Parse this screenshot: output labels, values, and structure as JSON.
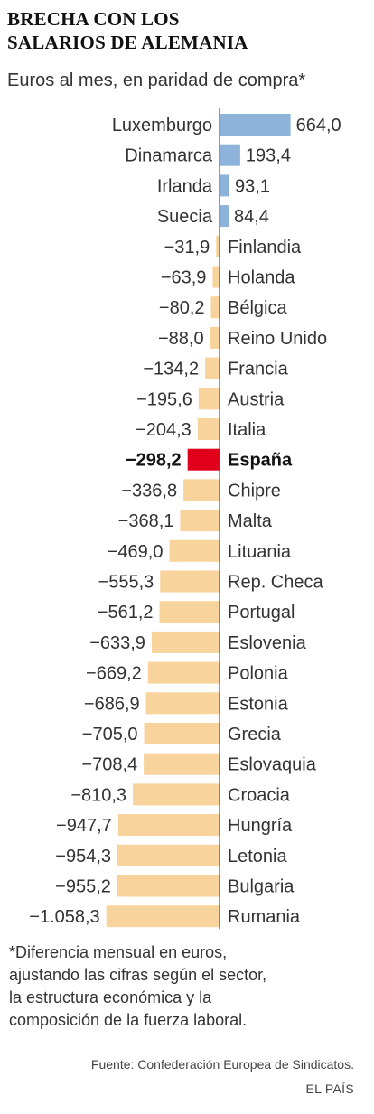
{
  "title_lines": [
    "BRECHA CON LOS",
    "SALARIOS DE ALEMANIA"
  ],
  "subtitle": "Euros al mes, en paridad de compra*",
  "chart_data": {
    "type": "bar",
    "orientation": "horizontal",
    "categories": [
      "Luxemburgo",
      "Dinamarca",
      "Irlanda",
      "Suecia",
      "Finlandia",
      "Holanda",
      "Bélgica",
      "Reino Unido",
      "Francia",
      "Austria",
      "Italia",
      "España",
      "Chipre",
      "Malta",
      "Lituania",
      "Rep. Checa",
      "Portugal",
      "Eslovenia",
      "Polonia",
      "Estonia",
      "Grecia",
      "Eslovaquia",
      "Croacia",
      "Hungría",
      "Letonia",
      "Bulgaria",
      "Rumania"
    ],
    "values": [
      664.0,
      193.4,
      93.1,
      84.4,
      -31.9,
      -63.9,
      -80.2,
      -88.0,
      -134.2,
      -195.6,
      -204.3,
      -298.2,
      -336.8,
      -368.1,
      -469.0,
      -555.3,
      -561.2,
      -633.9,
      -669.2,
      -686.9,
      -705.0,
      -708.4,
      -810.3,
      -947.7,
      -954.3,
      -955.2,
      -1058.3
    ],
    "value_labels": [
      "664,0",
      "193,4",
      "93,1",
      "84,4",
      "−31,9",
      "−63,9",
      "−80,2",
      "−88,0",
      "−134,2",
      "−195,6",
      "−204,3",
      "−298,2",
      "−336,8",
      "−368,1",
      "−469,0",
      "−555,3",
      "−561,2",
      "−633,9",
      "−669,2",
      "−686,9",
      "−705,0",
      "−708,4",
      "−810,3",
      "−947,7",
      "−954,3",
      "−955,2",
      "−1.058,3"
    ],
    "highlight": "España",
    "colors": {
      "positive": "#8db3da",
      "negative": "#f8d39b",
      "highlight": "#e0001b",
      "axis": "#555555"
    }
  },
  "footnote_lines": [
    "*Diferencia mensual en euros,",
    "ajustando las cifras según el sector,",
    "la estructura económica y la",
    "composición de la fuerza laboral."
  ],
  "source": "Fuente: Confederación Europea de Sindicatos.",
  "brand": "EL PAÍS"
}
